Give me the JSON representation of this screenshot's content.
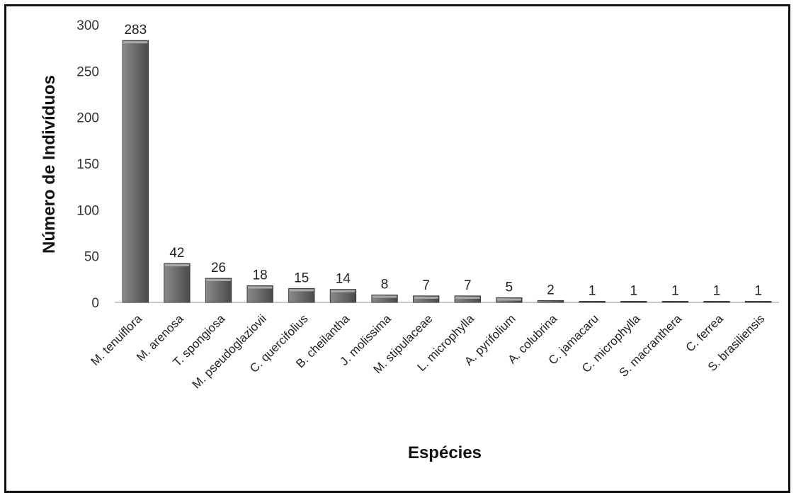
{
  "chart_data": {
    "type": "bar",
    "title": "",
    "xlabel": "Espécies",
    "ylabel": "Número de Indivíduos",
    "ylim": [
      0,
      300
    ],
    "yticks": [
      0,
      50,
      100,
      150,
      200,
      250,
      300
    ],
    "grid": false,
    "legend": "none",
    "bar_color": "#6e6e6e",
    "categories": [
      "M. tenuiflora",
      "M. arenosa",
      "T. spongiosa",
      "M. pseudoglaziovii",
      "C. quercifolius",
      "B. cheilantha",
      "J. molissima",
      "M. stipulaceae",
      "L. microphylla",
      "A. pyrifolium",
      "A. colubrina",
      "C. jamacaru",
      "C. microphylla",
      "S. macranthera",
      "C. ferrea",
      "S. brasiliensis"
    ],
    "values": [
      283,
      42,
      26,
      18,
      15,
      14,
      8,
      7,
      7,
      5,
      2,
      1,
      1,
      1,
      1,
      1
    ]
  }
}
